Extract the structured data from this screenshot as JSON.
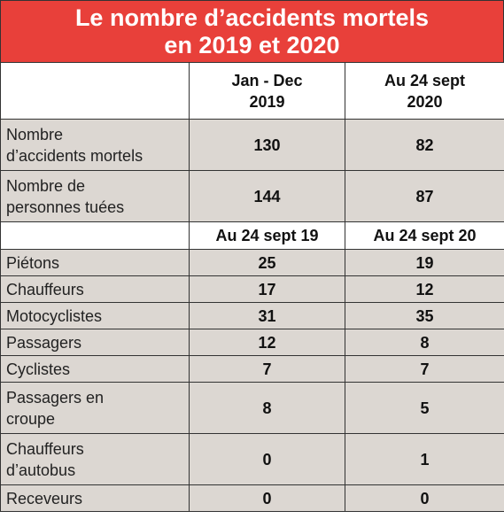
{
  "title": [
    "Le nombre d’accidents mortels",
    "en 2019 et 2020"
  ],
  "table": {
    "header": [
      [
        "Jan - Dec",
        "2019"
      ],
      [
        "Au 24 sept",
        "2020"
      ]
    ],
    "rows_a": [
      {
        "label": [
          "Nombre",
          "d’accidents mortels"
        ],
        "values": [
          130,
          82
        ]
      },
      {
        "label": [
          "Nombre de",
          "personnes tuées"
        ],
        "values": [
          144,
          87
        ]
      }
    ],
    "subheader": [
      "Au 24 sept 19",
      "Au 24 sept 20"
    ],
    "rows_b": [
      {
        "label": [
          "Piétons"
        ],
        "values": [
          25,
          19
        ]
      },
      {
        "label": [
          "Chauffeurs"
        ],
        "values": [
          17,
          12
        ]
      },
      {
        "label": [
          "Motocyclistes"
        ],
        "values": [
          31,
          35
        ]
      },
      {
        "label": [
          "Passagers"
        ],
        "values": [
          12,
          8
        ]
      },
      {
        "label": [
          "Cyclistes"
        ],
        "values": [
          7,
          7
        ]
      },
      {
        "label": [
          "Passagers en",
          "croupe"
        ],
        "values": [
          8,
          5
        ]
      },
      {
        "label": [
          "Chauffeurs",
          "d’autobus"
        ],
        "values": [
          0,
          1
        ]
      },
      {
        "label": [
          "Receveurs"
        ],
        "values": [
          0,
          0
        ]
      }
    ]
  }
}
